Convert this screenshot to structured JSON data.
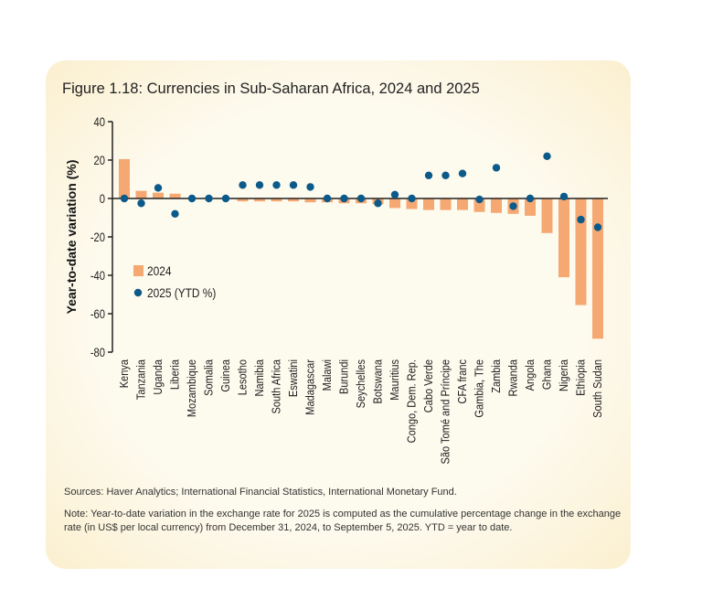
{
  "chart_data": {
    "type": "bar",
    "title": "Figure 1.18: Currencies in Sub-Saharan Africa, 2024 and 2025",
    "ylabel": "Year-to-date variation (%)",
    "xlabel": "",
    "ylim": [
      -80,
      40
    ],
    "yticks": [
      40,
      20,
      0,
      -20,
      -40,
      -60,
      -80
    ],
    "legend_position": "left-middle",
    "grid": false,
    "categories": [
      "Kenya",
      "Tanzania",
      "Uganda",
      "Liberia",
      "Mozambique",
      "Somalia",
      "Guinea",
      "Lesotho",
      "Namibia",
      "South Africa",
      "Eswatini",
      "Madagascar",
      "Malawi",
      "Burundi",
      "Seychelles",
      "Botswana",
      "Mauritius",
      "Congo, Dem. Rep.",
      "Cabo Verde",
      "São Tomé and Príncipe",
      "CFA franc",
      "Gambia, The",
      "Zambia",
      "Rwanda",
      "Angola",
      "Ghana",
      "Nigeria",
      "Ethiopia",
      "South Sudan"
    ],
    "series": [
      {
        "name": "2024",
        "type": "bar",
        "color": "#f6a873",
        "values": [
          20.5,
          4,
          3,
          2.5,
          0,
          0,
          0,
          -1.5,
          -1.5,
          -1.5,
          -1.5,
          -2,
          -2,
          -2.5,
          -2.5,
          -3,
          -5,
          -5.5,
          -6,
          -6,
          -6,
          -7,
          -7.5,
          -8,
          -9,
          -18,
          -41,
          -55.5,
          -73
        ]
      },
      {
        "name": "2025 (YTD %)",
        "type": "scatter",
        "color": "#0b5a8a",
        "values": [
          0,
          -2.5,
          5.5,
          -8,
          0,
          0,
          0,
          7,
          7,
          7,
          7,
          6,
          0,
          0,
          0,
          -2.5,
          2,
          0,
          12,
          12,
          13,
          -0.5,
          16,
          -4,
          0,
          22,
          1,
          -11,
          -15
        ]
      }
    ]
  },
  "sources": "Sources: Haver Analytics; International Financial Statistics, International Monetary Fund.",
  "note": "Note: Year-to-date variation in the exchange rate for 2025 is computed as the cumulative percentage change in the exchange rate (in US$ per local currency) from December 31, 2024, to September 5, 2025. YTD = year to date."
}
